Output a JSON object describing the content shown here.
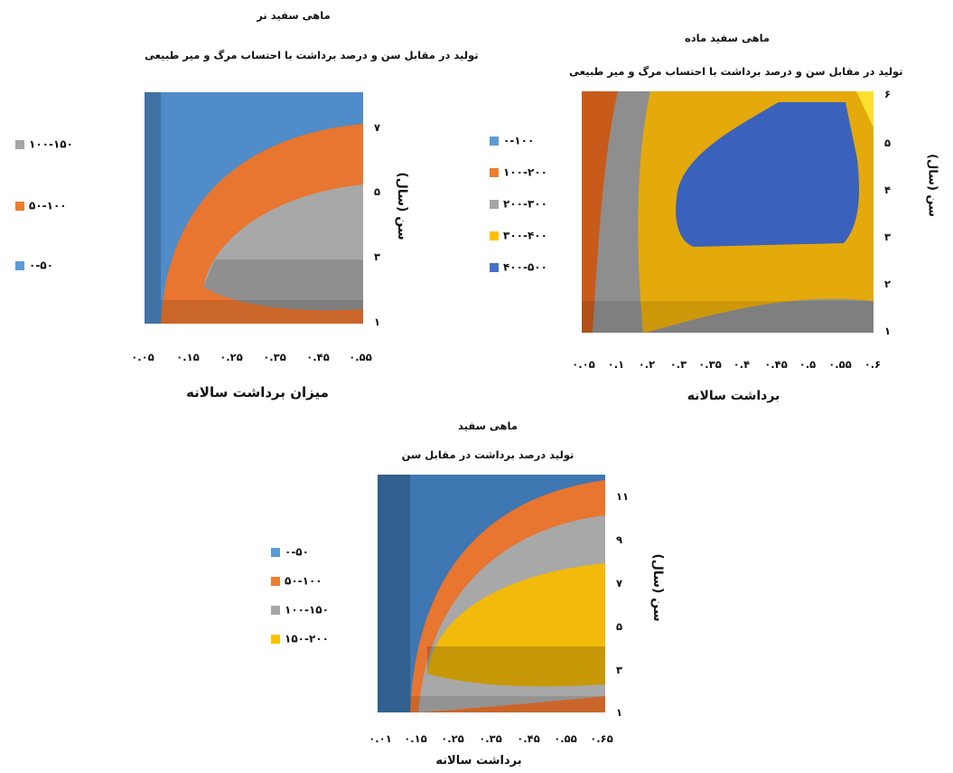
{
  "chart_data": [
    {
      "type": "contour",
      "title": "ماهی سفید نر",
      "subtitle": "تولید در مقابل سن و درصد برداشت با احتساب مرگ و میر طبیعی",
      "xlabel": "میزان برداشت سالانه",
      "ylabel": "سن (سال)",
      "x_ticks": [
        "۰.۰۵",
        "۰.۱۵",
        "۰.۲۵",
        "۰.۳۵",
        "۰.۴۵",
        "۰.۵۵"
      ],
      "y_ticks": [
        "۱",
        "۳",
        "۵",
        "۷"
      ],
      "xlim": [
        0.05,
        0.55
      ],
      "ylim": [
        1,
        7
      ],
      "legend": [
        {
          "label": "۱۰۰-۱۵۰",
          "color": "#A5A5A5"
        },
        {
          "label": "۵۰-۱۰۰",
          "color": "#ED7D31"
        },
        {
          "label": "۰-۵۰",
          "color": "#5B9BD5"
        }
      ],
      "bands": [
        "۰-۵۰",
        "۵۰-۱۰۰",
        "۱۰۰-۱۵۰"
      ]
    },
    {
      "type": "contour",
      "title": "ماهی سفید ماده",
      "subtitle": "تولید در مقابل سن و درصد برداشت با احتساب مرگ و میر طبیعی",
      "xlabel": "برداشت سالانه",
      "ylabel": "سن (سال)",
      "x_ticks": [
        "۰.۰۵",
        "۰.۱",
        "۰.۲",
        "۰.۳",
        "۰.۳۵",
        "۰.۴",
        "۰.۴۵",
        "۰.۵",
        "۰.۵۵",
        "۰.۶"
      ],
      "y_ticks": [
        "۱",
        "۲",
        "۳",
        "۴",
        "۵",
        "۶"
      ],
      "ylim": [
        1,
        6
      ],
      "legend": [
        {
          "label": "۰-۱۰۰",
          "color": "#5B9BD5"
        },
        {
          "label": "۱۰۰-۲۰۰",
          "color": "#ED7D31"
        },
        {
          "label": "۲۰۰-۳۰۰",
          "color": "#A5A5A5"
        },
        {
          "label": "۳۰۰-۴۰۰",
          "color": "#FFC000"
        },
        {
          "label": "۴۰۰-۵۰۰",
          "color": "#4472C4"
        }
      ],
      "bands": [
        "۱۰۰-۲۰۰",
        "۲۰۰-۳۰۰",
        "۳۰۰-۴۰۰",
        "۴۰۰-۵۰۰"
      ]
    },
    {
      "type": "contour",
      "title": "ماهی سفید",
      "subtitle": "تولید درصد برداشت در مقابل سن",
      "xlabel": "برداشت سالانه",
      "ylabel": "سن (سال)",
      "x_ticks": [
        "۰.۰۱",
        "۰.۱۵",
        "۰.۲۵",
        "۰.۳۵",
        "۰.۴۵",
        "۰.۵۵",
        "۰.۶۵"
      ],
      "y_ticks": [
        "۱",
        "۳",
        "۵",
        "۷",
        "۹",
        "۱۱"
      ],
      "xlim": [
        0.01,
        0.65
      ],
      "ylim": [
        1,
        11
      ],
      "legend": [
        {
          "label": "۰-۵۰",
          "color": "#5B9BD5"
        },
        {
          "label": "۵۰-۱۰۰",
          "color": "#ED7D31"
        },
        {
          "label": "۱۰۰-۱۵۰",
          "color": "#A5A5A5"
        },
        {
          "label": "۱۵۰-۲۰۰",
          "color": "#FFC000"
        }
      ],
      "bands": [
        "۰-۵۰",
        "۵۰-۱۰۰",
        "۱۰۰-۱۵۰",
        "۱۵۰-۲۰۰"
      ]
    }
  ]
}
